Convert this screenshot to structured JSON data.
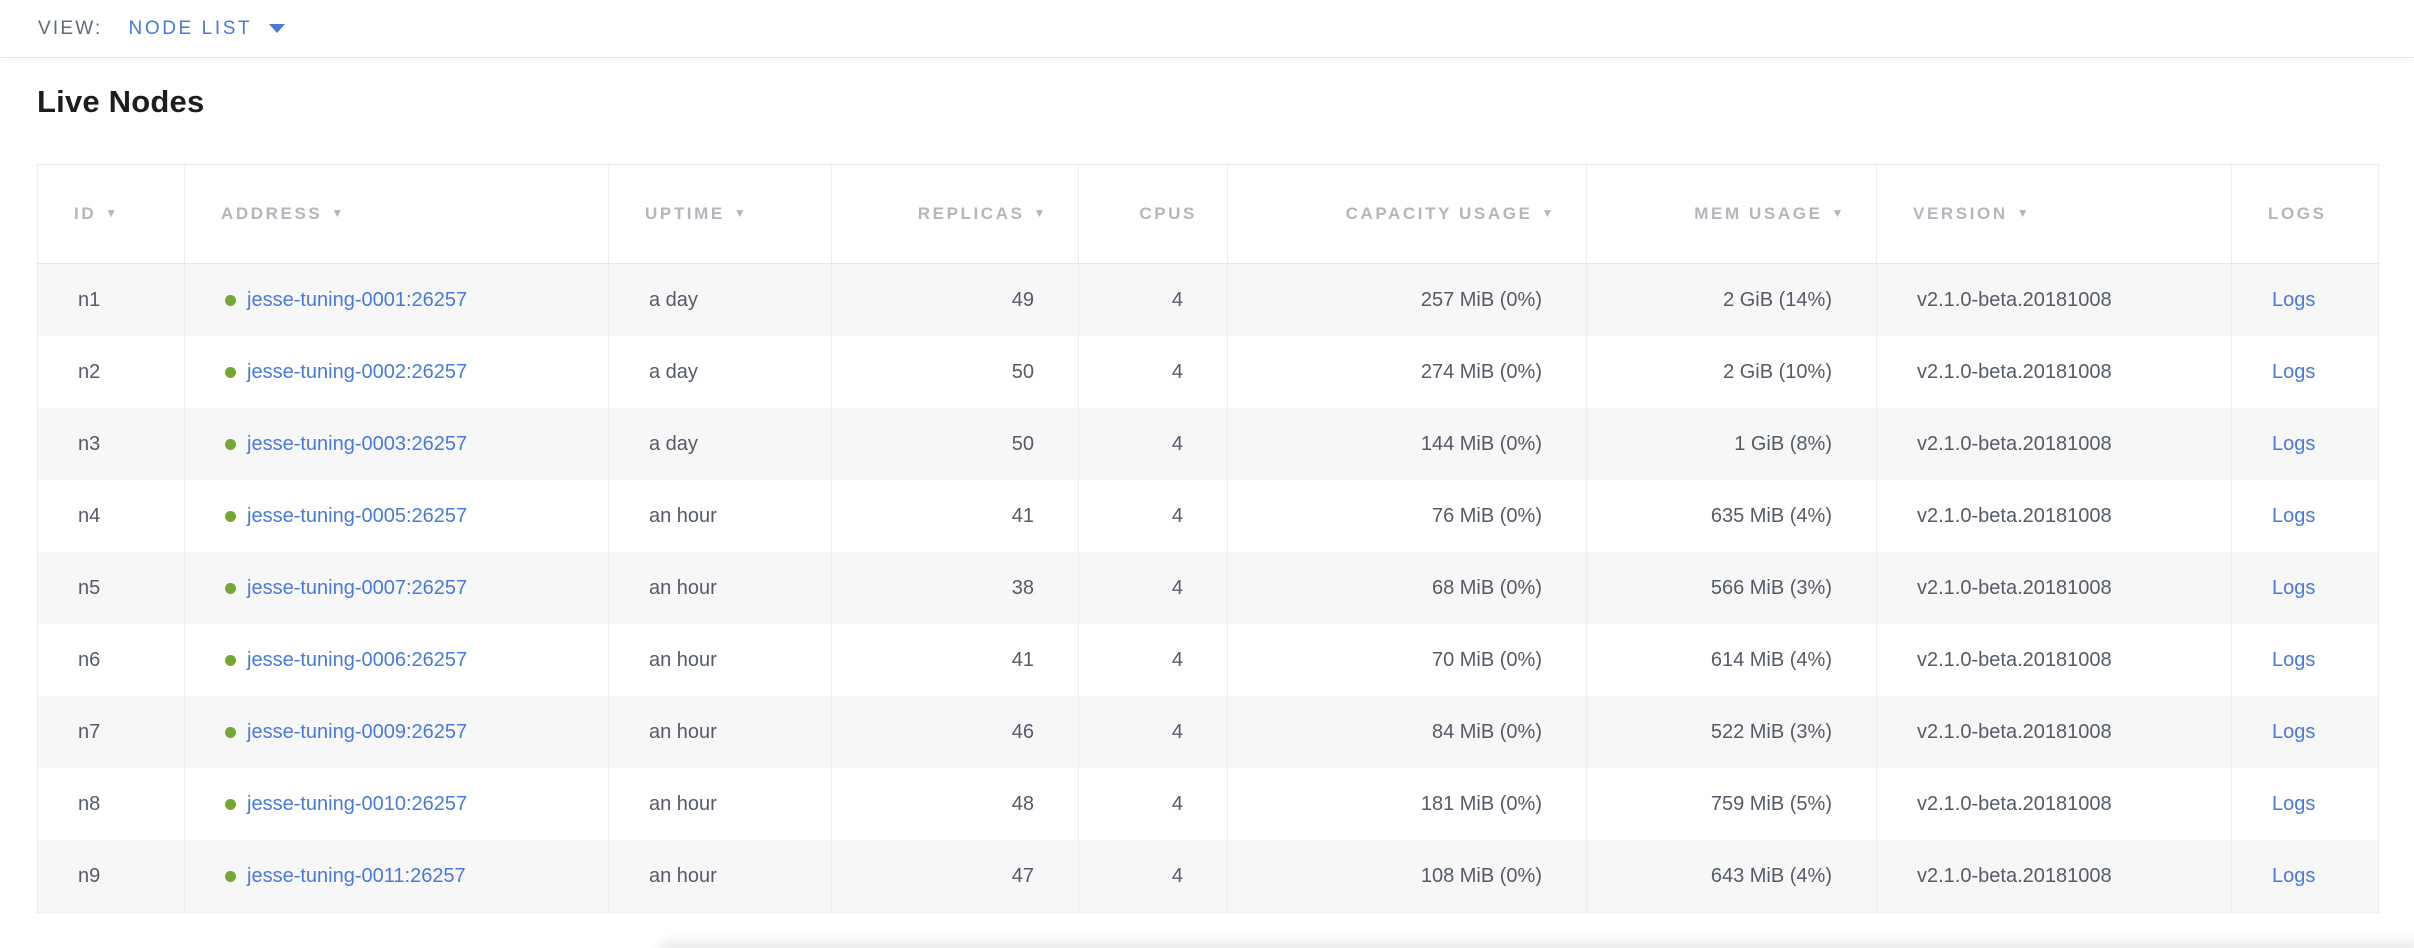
{
  "toolbar": {
    "view_label": "VIEW:",
    "view_value": "NODE LIST"
  },
  "page": {
    "title": "Live Nodes"
  },
  "icons": {
    "sort_arrow_icon": "▼"
  },
  "colors": {
    "link_blue": "#487ad7",
    "live_green": "#76a633",
    "header_gray": "#b3b6bc",
    "cell_text": "#545a68",
    "row_stripe": "#f7f7f8",
    "border": "#ececec"
  },
  "table": {
    "columns": [
      {
        "key": "id",
        "label": "ID",
        "sortable": true,
        "align": "left"
      },
      {
        "key": "address",
        "label": "ADDRESS",
        "sortable": true,
        "align": "left"
      },
      {
        "key": "uptime",
        "label": "UPTIME",
        "sortable": true,
        "align": "left"
      },
      {
        "key": "replicas",
        "label": "REPLICAS",
        "sortable": true,
        "align": "right"
      },
      {
        "key": "cpus",
        "label": "CPUS",
        "sortable": false,
        "align": "right"
      },
      {
        "key": "capacity_usage",
        "label": "CAPACITY USAGE",
        "sortable": true,
        "align": "right"
      },
      {
        "key": "mem_usage",
        "label": "MEM USAGE",
        "sortable": true,
        "align": "right"
      },
      {
        "key": "version",
        "label": "VERSION",
        "sortable": true,
        "align": "left"
      },
      {
        "key": "logs",
        "label": "LOGS",
        "sortable": false,
        "align": "left"
      }
    ],
    "rows": [
      {
        "id": "n1",
        "address": "jesse-tuning-0001:26257",
        "uptime": "a day",
        "replicas": "49",
        "cpus": "4",
        "capacity_usage": "257 MiB (0%)",
        "mem_usage": "2 GiB (14%)",
        "version": "v2.1.0-beta.20181008",
        "logs": "Logs",
        "status": "live"
      },
      {
        "id": "n2",
        "address": "jesse-tuning-0002:26257",
        "uptime": "a day",
        "replicas": "50",
        "cpus": "4",
        "capacity_usage": "274 MiB (0%)",
        "mem_usage": "2 GiB (10%)",
        "version": "v2.1.0-beta.20181008",
        "logs": "Logs",
        "status": "live"
      },
      {
        "id": "n3",
        "address": "jesse-tuning-0003:26257",
        "uptime": "a day",
        "replicas": "50",
        "cpus": "4",
        "capacity_usage": "144 MiB (0%)",
        "mem_usage": "1 GiB (8%)",
        "version": "v2.1.0-beta.20181008",
        "logs": "Logs",
        "status": "live"
      },
      {
        "id": "n4",
        "address": "jesse-tuning-0005:26257",
        "uptime": "an hour",
        "replicas": "41",
        "cpus": "4",
        "capacity_usage": "76 MiB (0%)",
        "mem_usage": "635 MiB (4%)",
        "version": "v2.1.0-beta.20181008",
        "logs": "Logs",
        "status": "live"
      },
      {
        "id": "n5",
        "address": "jesse-tuning-0007:26257",
        "uptime": "an hour",
        "replicas": "38",
        "cpus": "4",
        "capacity_usage": "68 MiB (0%)",
        "mem_usage": "566 MiB (3%)",
        "version": "v2.1.0-beta.20181008",
        "logs": "Logs",
        "status": "live"
      },
      {
        "id": "n6",
        "address": "jesse-tuning-0006:26257",
        "uptime": "an hour",
        "replicas": "41",
        "cpus": "4",
        "capacity_usage": "70 MiB (0%)",
        "mem_usage": "614 MiB (4%)",
        "version": "v2.1.0-beta.20181008",
        "logs": "Logs",
        "status": "live"
      },
      {
        "id": "n7",
        "address": "jesse-tuning-0009:26257",
        "uptime": "an hour",
        "replicas": "46",
        "cpus": "4",
        "capacity_usage": "84 MiB (0%)",
        "mem_usage": "522 MiB (3%)",
        "version": "v2.1.0-beta.20181008",
        "logs": "Logs",
        "status": "live"
      },
      {
        "id": "n8",
        "address": "jesse-tuning-0010:26257",
        "uptime": "an hour",
        "replicas": "48",
        "cpus": "4",
        "capacity_usage": "181 MiB (0%)",
        "mem_usage": "759 MiB (5%)",
        "version": "v2.1.0-beta.20181008",
        "logs": "Logs",
        "status": "live"
      },
      {
        "id": "n9",
        "address": "jesse-tuning-0011:26257",
        "uptime": "an hour",
        "replicas": "47",
        "cpus": "4",
        "capacity_usage": "108 MiB (0%)",
        "mem_usage": "643 MiB (4%)",
        "version": "v2.1.0-beta.20181008",
        "logs": "Logs",
        "status": "live"
      }
    ]
  }
}
